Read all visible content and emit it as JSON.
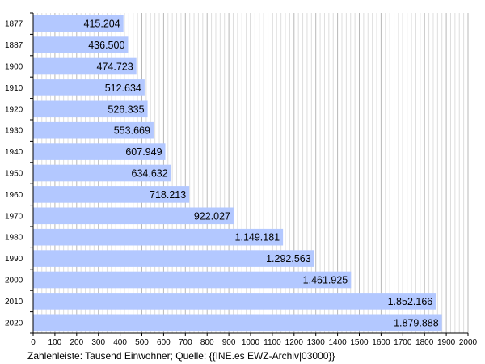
{
  "chart_data": {
    "type": "bar",
    "orientation": "horizontal",
    "categories": [
      "1877",
      "1887",
      "1900",
      "1910",
      "1920",
      "1930",
      "1940",
      "1950",
      "1960",
      "1970",
      "1980",
      "1990",
      "2000",
      "2010",
      "2020"
    ],
    "values": [
      415.204,
      436.5,
      474.723,
      512.634,
      526.335,
      553.669,
      607.949,
      634.632,
      718.213,
      922.027,
      1149.181,
      1292.563,
      1461.925,
      1852.166,
      1879.888
    ],
    "value_labels": [
      "415.204",
      "436.500",
      "474.723",
      "512.634",
      "526.335",
      "553.669",
      "607.949",
      "634.632",
      "718.213",
      "922.027",
      "1.149.181",
      "1.292.563",
      "1.461.925",
      "1.852.166",
      "1.879.888"
    ],
    "xlim": [
      0,
      2000
    ],
    "x_ticks": [
      0,
      100,
      200,
      300,
      400,
      500,
      600,
      700,
      800,
      900,
      1000,
      1100,
      1200,
      1300,
      1400,
      1500,
      1600,
      1700,
      1800,
      1900,
      2000
    ],
    "grid": "vertical",
    "bar_color": "#b3c8ff",
    "caption": "Zahlenleiste: Tausend Einwohner; Quelle: {{INE.es EWZ-Archiv|03000}}"
  }
}
